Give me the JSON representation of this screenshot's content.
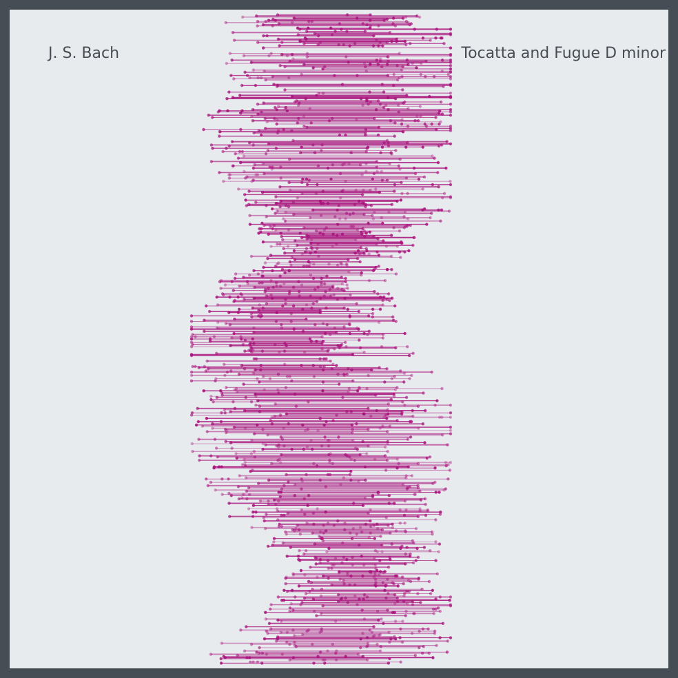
{
  "composer": "J. S. Bach",
  "piece_title": "Tocatta and Fugue D minor",
  "colors": {
    "background_outer": "#474d54",
    "background_inner": "#e8ebee",
    "text": "#474d54",
    "stroke": "#a8127c"
  }
}
